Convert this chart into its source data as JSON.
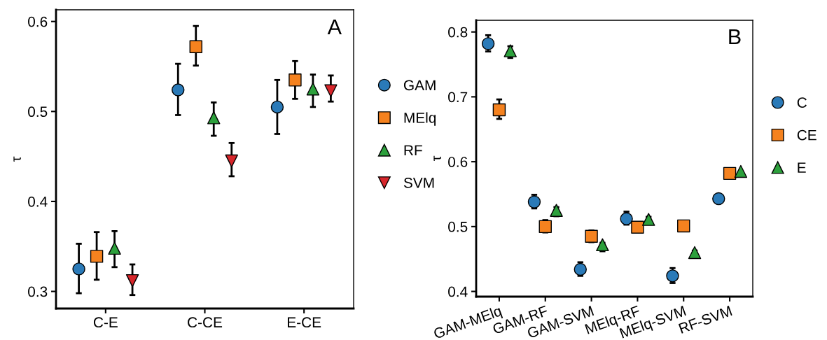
{
  "chart_data": [
    {
      "type": "scatter",
      "title": "A",
      "ylabel": "τ",
      "categories": [
        "C-E",
        "C-CE",
        "E-CE"
      ],
      "ylim": [
        0.281,
        0.613
      ],
      "yticks": [
        {
          "value": 0.3,
          "label": "0.3"
        },
        {
          "value": 0.4,
          "label": "0.4"
        },
        {
          "value": 0.5,
          "label": "0.5"
        },
        {
          "value": 0.6,
          "label": "0.6"
        }
      ],
      "grid": false,
      "legend": "right",
      "series": [
        {
          "name": "GAM",
          "color": "#2a7ab8",
          "marker": "circle",
          "values": [
            0.325,
            0.524,
            0.505
          ],
          "errors": [
            [
              0.298,
              0.353
            ],
            [
              0.496,
              0.553
            ],
            [
              0.475,
              0.535
            ]
          ]
        },
        {
          "name": "MElq",
          "color": "#f5821f",
          "marker": "square",
          "values": [
            0.339,
            0.572,
            0.535
          ],
          "errors": [
            [
              0.313,
              0.366
            ],
            [
              0.551,
              0.595
            ],
            [
              0.514,
              0.556
            ]
          ]
        },
        {
          "name": "RF",
          "color": "#2ca03c",
          "marker": "triangle",
          "values": [
            0.348,
            0.493,
            0.525
          ],
          "errors": [
            [
              0.327,
              0.367
            ],
            [
              0.473,
              0.51
            ],
            [
              0.505,
              0.541
            ]
          ]
        },
        {
          "name": "SVM",
          "color": "#d7262b",
          "marker": "triangle_down",
          "values": [
            0.312,
            0.445,
            0.523
          ],
          "errors": [
            [
              0.296,
              0.33
            ],
            [
              0.428,
              0.465
            ],
            [
              0.511,
              0.54
            ]
          ]
        }
      ]
    },
    {
      "type": "scatter",
      "title": "B",
      "ylabel": "τ",
      "categories": [
        "GAM-MElq",
        "GAM-RF",
        "GAM-SVM",
        "MElq-RF",
        "MElq-SVM",
        "RF-SVM"
      ],
      "ylim": [
        0.392,
        0.818
      ],
      "yticks": [
        {
          "value": 0.4,
          "label": "0.4"
        },
        {
          "value": 0.5,
          "label": "0.5"
        },
        {
          "value": 0.6,
          "label": "0.6"
        },
        {
          "value": 0.7,
          "label": "0.7"
        },
        {
          "value": 0.8,
          "label": "0.8"
        }
      ],
      "grid": false,
      "legend": "right",
      "series": [
        {
          "name": "C",
          "color": "#2a7ab8",
          "marker": "circle",
          "values": [
            0.782,
            0.538,
            0.434,
            0.512,
            0.424,
            0.543
          ],
          "errors": [
            [
              0.77,
              0.795
            ],
            [
              0.528,
              0.549
            ],
            [
              0.424,
              0.445
            ],
            [
              0.503,
              0.523
            ],
            [
              0.413,
              0.436
            ],
            null
          ]
        },
        {
          "name": "CE",
          "color": "#f5821f",
          "marker": "square",
          "values": [
            0.68,
            0.5,
            0.485,
            0.499,
            0.501,
            0.582
          ],
          "errors": [
            [
              0.666,
              0.696
            ],
            [
              0.491,
              0.51
            ],
            [
              0.476,
              0.494
            ],
            [
              0.491,
              0.505
            ],
            null,
            null
          ]
        },
        {
          "name": "E",
          "color": "#2ca03c",
          "marker": "triangle",
          "values": [
            0.771,
            0.525,
            0.472,
            0.511,
            0.46,
            0.585
          ],
          "errors": [
            [
              0.76,
              0.778
            ],
            [
              0.516,
              0.53
            ],
            [
              0.462,
              0.475
            ],
            [
              0.505,
              0.515
            ],
            [
              0.453,
              0.463
            ],
            null
          ]
        }
      ]
    }
  ]
}
